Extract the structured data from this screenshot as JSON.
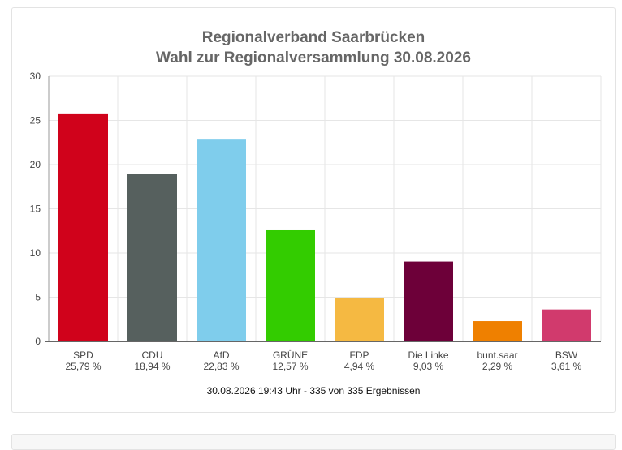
{
  "chart_data": {
    "type": "bar",
    "title": "Regionalverband Saarbrücken",
    "subtitle": "Wahl zur Regionalversammlung 30.08.2026",
    "categories": [
      "SPD",
      "CDU",
      "AfD",
      "GRÜNE",
      "FDP",
      "Die Linke",
      "bunt.saar",
      "BSW"
    ],
    "values": [
      25.79,
      18.94,
      22.83,
      12.57,
      4.94,
      9.03,
      2.29,
      3.61
    ],
    "value_labels": [
      "25,79 %",
      "18,94 %",
      "22,83 %",
      "12,57 %",
      "4,94 %",
      "9,03 %",
      "2,29 %",
      "3,61 %"
    ],
    "colors": [
      "#d0021b",
      "#56605e",
      "#7fcdec",
      "#33cc00",
      "#f5b942",
      "#6d0039",
      "#ef8000",
      "#d13a6d"
    ],
    "yticks": [
      "0",
      "5",
      "10",
      "15",
      "20",
      "25",
      "30"
    ],
    "ylim": [
      0,
      30
    ],
    "xlabel": "",
    "ylabel": "",
    "grid": true,
    "legend": "none"
  },
  "footer": "30.08.2026 19:43 Uhr - 335 von 335 Ergebnissen"
}
